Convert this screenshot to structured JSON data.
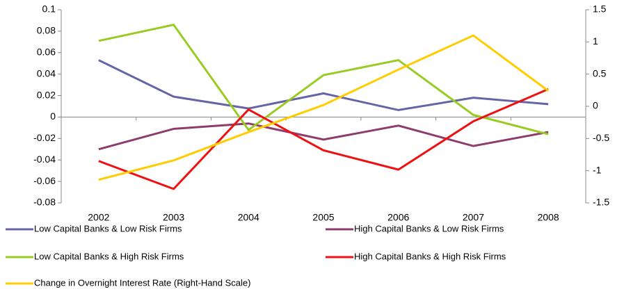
{
  "chart_data": {
    "type": "line",
    "categories": [
      "2002",
      "2003",
      "2004",
      "2005",
      "2006",
      "2007",
      "2008"
    ],
    "ylim": [
      -0.08,
      0.1
    ],
    "yticks": [
      0.1,
      0.08,
      0.06,
      0.04,
      0.02,
      0,
      -0.02,
      -0.04,
      -0.06,
      -0.08
    ],
    "y2lim": [
      -1.5,
      1.5
    ],
    "y2ticks": [
      1.5,
      1,
      0.5,
      0,
      -0.5,
      -1,
      -1.5
    ],
    "series": [
      {
        "name": "Low Capital Banks & Low Risk Firms",
        "color": "#6464a6",
        "values": [
          0.053,
          0.019,
          0.008,
          0.022,
          0.0065,
          0.018,
          0.012
        ]
      },
      {
        "name": "High Capital Banks & Low Risk Firms",
        "color": "#8e3b6e",
        "values": [
          -0.03,
          -0.011,
          -0.006,
          -0.021,
          -0.008,
          -0.027,
          -0.014
        ]
      },
      {
        "name": "Low Capital Banks & High Risk Firms",
        "color": "#99cc22",
        "values": [
          0.071,
          0.086,
          -0.012,
          0.039,
          0.053,
          0.002,
          -0.016
        ]
      },
      {
        "name": "High Capital Banks & High Risk Firms",
        "color": "#ee1111",
        "values": [
          -0.041,
          -0.067,
          0.007,
          -0.031,
          -0.049,
          -0.004,
          0.026
        ]
      },
      {
        "name": "Change in Overnight Interest Rate (Right-Hand Scale)",
        "color": "#ffcc00",
        "axis": "y2",
        "values": [
          -1.14,
          -0.84,
          -0.4,
          0.02,
          0.57,
          1.1,
          0.24
        ]
      }
    ]
  }
}
